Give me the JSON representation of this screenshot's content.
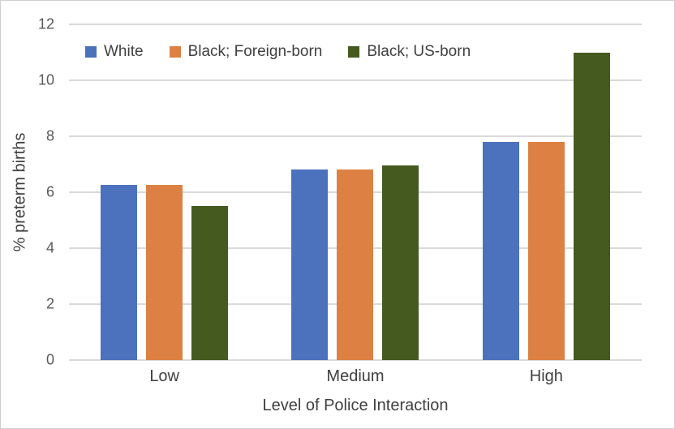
{
  "chart_data": {
    "type": "bar",
    "categories": [
      "Low",
      "Medium",
      "High"
    ],
    "series": [
      {
        "name": "White",
        "color": "#4C72BE",
        "values": [
          6.25,
          6.8,
          7.8
        ]
      },
      {
        "name": "Black; Foreign-born",
        "color": "#DC8143",
        "values": [
          6.25,
          6.8,
          7.8
        ]
      },
      {
        "name": "Black; US-born",
        "color": "#445A1F",
        "values": [
          5.5,
          6.95,
          11.0
        ]
      }
    ],
    "xlabel": "Level of Police Interaction",
    "ylabel": "% preterm births",
    "ylim": [
      0,
      12
    ],
    "yticks": [
      0,
      2,
      4,
      6,
      8,
      10,
      12
    ],
    "grid": "horizontal",
    "legend_position": "top-left"
  },
  "colors": {
    "gridline": "#D9D9D9",
    "axis_text": "#595959",
    "label_text": "#404040",
    "background": "#FFFFFF",
    "border": "#CFCDCD"
  }
}
